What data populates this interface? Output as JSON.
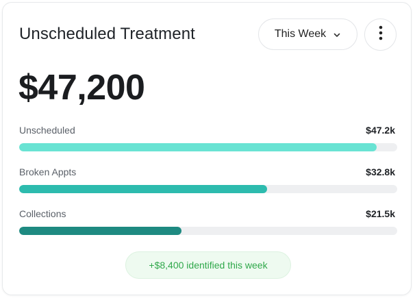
{
  "card": {
    "title": "Unscheduled Treatment",
    "period_label": "This Week",
    "amount": "$47,200"
  },
  "rows": [
    {
      "label": "Unscheduled",
      "value": "$47.2k",
      "fill_fraction": 0.945,
      "color": "#69e3d3"
    },
    {
      "label": "Broken Appts",
      "value": "$32.8k",
      "fill_fraction": 0.655,
      "color": "#2dbbae"
    },
    {
      "label": "Collections",
      "value": "$21.5k",
      "fill_fraction": 0.43,
      "color": "#1e8a81"
    }
  ],
  "footer": {
    "note": "+$8,400 identified this week"
  },
  "icons": {
    "period_chevron": "chevron-down-icon",
    "more": "more-vertical-icon"
  }
}
